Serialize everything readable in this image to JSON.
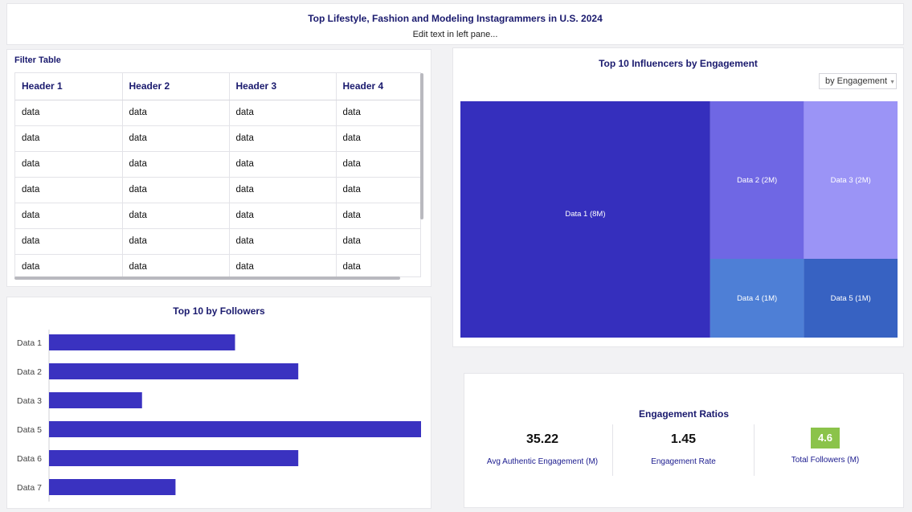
{
  "header": {
    "title": "Top Lifestyle, Fashion and Modeling Instagrammers in U.S. 2024",
    "subtitle": "Edit text in left pane..."
  },
  "filter_table": {
    "title": "Filter Table",
    "headers": [
      "Header 1",
      "Header 2",
      "Header 3",
      "Header 4"
    ],
    "rows": [
      [
        "data",
        "data",
        "data",
        "data"
      ],
      [
        "data",
        "data",
        "data",
        "data"
      ],
      [
        "data",
        "data",
        "data",
        "data"
      ],
      [
        "data",
        "data",
        "data",
        "data"
      ],
      [
        "data",
        "data",
        "data",
        "data"
      ],
      [
        "data",
        "data",
        "data",
        "data"
      ],
      [
        "data",
        "data",
        "data",
        "data"
      ]
    ]
  },
  "treemap": {
    "title": "Top 10 Influencers by Engagement",
    "dropdown": {
      "selected": "by Engagement"
    }
  },
  "engagement": {
    "title": "Engagement Ratios",
    "kpis": [
      {
        "value": "35.22",
        "label": "Avg Authentic Engagement (M)"
      },
      {
        "value": "1.45",
        "label": "Engagement Rate"
      },
      {
        "value": "4.6",
        "label": "Total Followers (M)"
      }
    ],
    "badge_color": "#8bc34a"
  },
  "chart_data": [
    {
      "type": "bar",
      "orientation": "horizontal",
      "title": "Top 10 by Followers",
      "categories": [
        "Data 1",
        "Data 2",
        "Data 3",
        "Data 5",
        "Data 6",
        "Data 7"
      ],
      "values": [
        50,
        67,
        25,
        100,
        67,
        34
      ],
      "xlim": [
        0,
        100
      ],
      "color": "#3a32c0",
      "grid": false
    },
    {
      "type": "treemap",
      "title": "Top 10 Influencers by Engagement",
      "items": [
        {
          "label": "Data 1 (8M)",
          "value": 8,
          "color": "#352fbd"
        },
        {
          "label": "Data 2 (2M)",
          "value": 2,
          "color": "#6f67e4"
        },
        {
          "label": "Data 3 (2M)",
          "value": 2,
          "color": "#9b94f6"
        },
        {
          "label": "Data 4 (1M)",
          "value": 1,
          "color": "#4e7fd6"
        },
        {
          "label": "Data 5 (1M)",
          "value": 1,
          "color": "#3762c2"
        }
      ]
    }
  ]
}
